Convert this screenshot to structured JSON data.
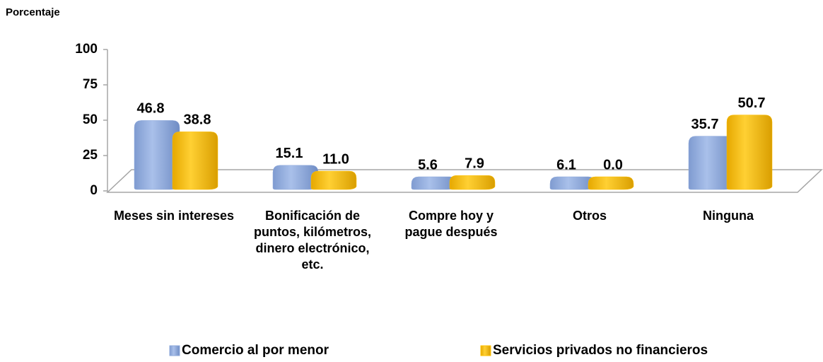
{
  "chart_data": {
    "type": "bar",
    "y_label": "Porcentaje",
    "categories": [
      "Meses sin intereses",
      "Bonificación de puntos, kilómetros, dinero electrónico, etc.",
      "Compre hoy y pague después",
      "Otros",
      "Ninguna"
    ],
    "series": [
      {
        "name": "Comercio al por menor",
        "color": "#8ea9db",
        "values": [
          46.8,
          15.1,
          5.6,
          6.1,
          35.7
        ],
        "value_labels": [
          "46.8",
          "15.1",
          "5.6",
          "6.1",
          "35.7"
        ]
      },
      {
        "name": "Servicios privados no financieros",
        "color": "#ffc000",
        "values": [
          38.8,
          11.0,
          7.9,
          0.0,
          50.7
        ],
        "value_labels": [
          "38.8",
          "11.0",
          "7.9",
          "0.0",
          "50.7"
        ]
      }
    ],
    "ylim": [
      0,
      100
    ],
    "yticks": [
      0,
      25,
      50,
      75,
      100
    ]
  }
}
